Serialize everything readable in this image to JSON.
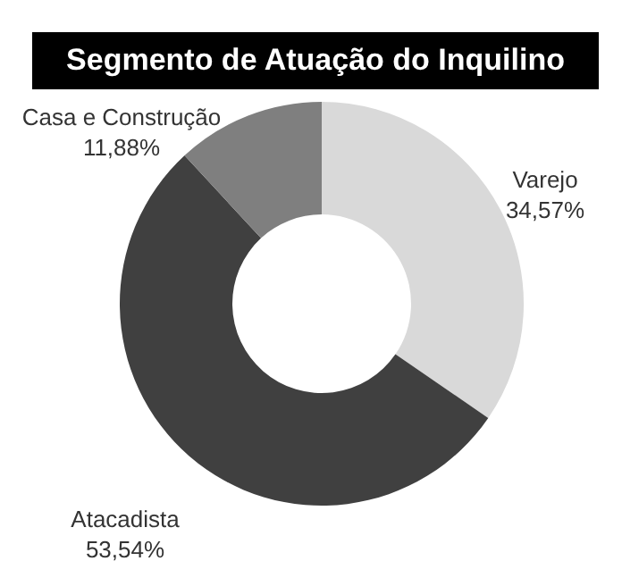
{
  "chart_data": {
    "type": "donut",
    "title": "Segmento de Atuação do Inquilino",
    "categories": [
      "Varejo",
      "Atacadista",
      "Casa e Construção"
    ],
    "values": [
      34.57,
      53.54,
      11.88
    ],
    "value_labels": [
      "34,57%",
      "53,54%",
      "11,88%"
    ],
    "colors": [
      "#d9d9d9",
      "#404040",
      "#7f7f7f"
    ]
  }
}
